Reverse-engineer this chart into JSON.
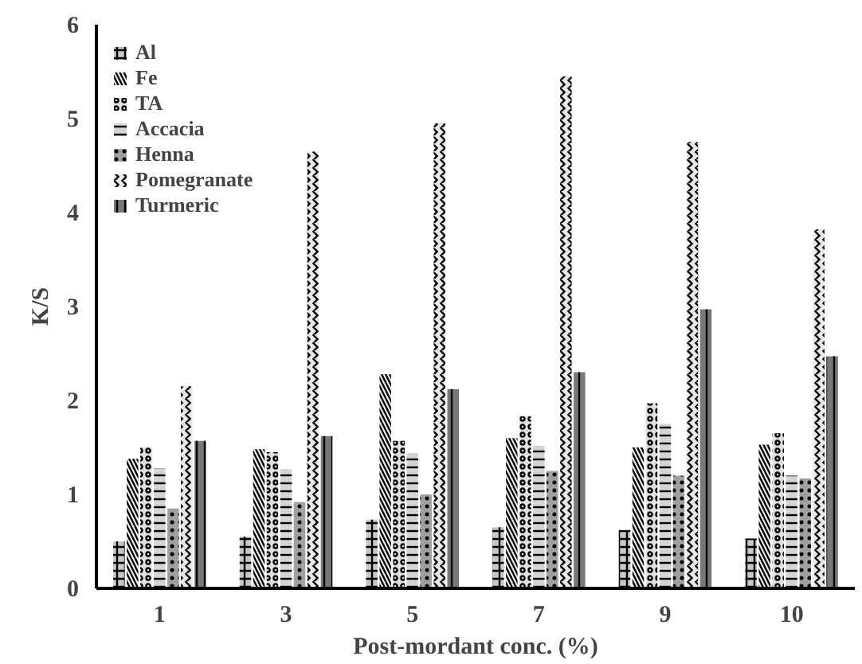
{
  "chart_data": {
    "type": "bar",
    "xlabel": "Post-mordant conc. (%)",
    "ylabel": "K/S",
    "categories": [
      "1",
      "3",
      "5",
      "7",
      "9",
      "10"
    ],
    "ylim": [
      0,
      6
    ],
    "yticks": [
      0,
      1,
      2,
      3,
      4,
      5,
      6
    ],
    "grid": false,
    "legend": "top left",
    "series": [
      {
        "name": "Al",
        "color": "#c8c8c8",
        "values": [
          0.5,
          0.55,
          0.73,
          0.65,
          0.62,
          0.53
        ]
      },
      {
        "name": "Fe",
        "color": "#f0f0f0",
        "values": [
          1.38,
          1.48,
          2.28,
          1.6,
          1.5,
          1.53
        ]
      },
      {
        "name": "TA",
        "color": "#e0e0e0",
        "values": [
          1.5,
          1.45,
          1.57,
          1.83,
          1.97,
          1.65
        ]
      },
      {
        "name": "Accacia",
        "color": "#d4d4d4",
        "values": [
          1.28,
          1.27,
          1.44,
          1.52,
          1.75,
          1.2
        ]
      },
      {
        "name": "Henna",
        "color": "#a0a0a0",
        "values": [
          0.85,
          0.92,
          1.0,
          1.25,
          1.2,
          1.17
        ]
      },
      {
        "name": "Pomegranate",
        "color": "#e8e8e8",
        "values": [
          2.15,
          4.65,
          4.95,
          5.45,
          4.75,
          3.82
        ]
      },
      {
        "name": "Turmeric",
        "color": "#787878",
        "values": [
          1.57,
          1.62,
          2.12,
          2.3,
          2.97,
          2.47
        ]
      }
    ]
  }
}
